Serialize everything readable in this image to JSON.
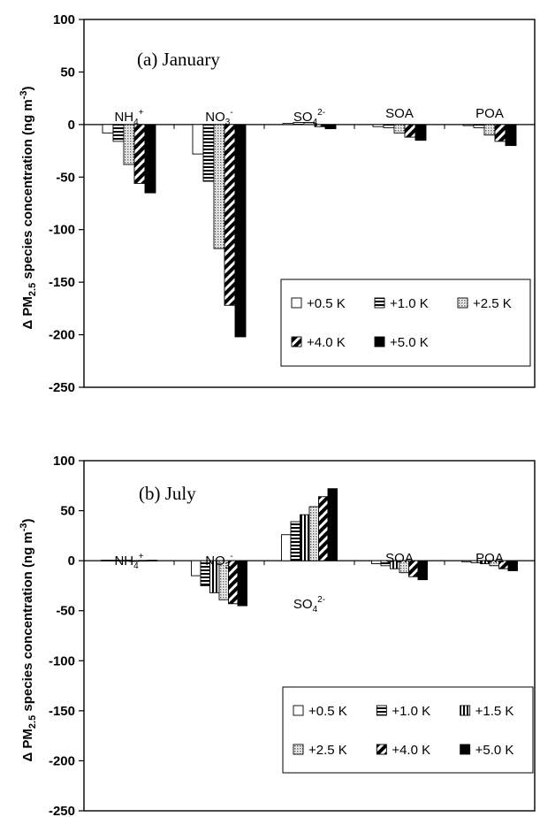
{
  "chart_data": [
    {
      "type": "bar",
      "title": "(a) January",
      "ylabel_parts": [
        "Δ PM",
        "2.5",
        " species concentration (ng m",
        "-3",
        ")"
      ],
      "ylim": [
        -250,
        100
      ],
      "yticks": [
        -250,
        -200,
        -150,
        -100,
        -50,
        0,
        50,
        100
      ],
      "categories": [
        {
          "base": "NH",
          "sub": "4",
          "sup": "+"
        },
        {
          "base": "NO",
          "sub": "3",
          "sup": "-"
        },
        {
          "base": "SO",
          "sub": "4",
          "sup": "2-"
        },
        {
          "base": "SOA",
          "sub": "",
          "sup": ""
        },
        {
          "base": "POA",
          "sub": "",
          "sup": ""
        }
      ],
      "series": [
        {
          "name": "+0.5 K",
          "pattern": "open",
          "values": [
            -8,
            -28,
            1,
            -2,
            -1
          ]
        },
        {
          "name": "+1.0 K",
          "pattern": "hstripe",
          "values": [
            -16,
            -54,
            2,
            -3,
            -3
          ]
        },
        {
          "name": "+2.5 K",
          "pattern": "dots",
          "values": [
            -38,
            -118,
            2,
            -8,
            -10
          ]
        },
        {
          "name": "+4.0 K",
          "pattern": "diag",
          "values": [
            -56,
            -172,
            -2,
            -12,
            -16
          ]
        },
        {
          "name": "+5.0 K",
          "pattern": "solid",
          "values": [
            -65,
            -202,
            -4,
            -15,
            -20
          ]
        }
      ],
      "legend_position": "bottom-right",
      "grid": false
    },
    {
      "type": "bar",
      "title": "(b) July",
      "ylabel_parts": [
        "Δ PM",
        "2.5",
        " species concentration (ng m",
        "-3",
        ")"
      ],
      "ylim": [
        -250,
        100
      ],
      "yticks": [
        -250,
        -200,
        -150,
        -100,
        -50,
        0,
        50,
        100
      ],
      "categories": [
        {
          "base": "NH",
          "sub": "4",
          "sup": "+"
        },
        {
          "base": "NO",
          "sub": "3",
          "sup": "-"
        },
        {
          "base": "SO",
          "sub": "4",
          "sup": "2-"
        },
        {
          "base": "SOA",
          "sub": "",
          "sup": ""
        },
        {
          "base": "POA",
          "sub": "",
          "sup": ""
        }
      ],
      "series": [
        {
          "name": "+0.5 K",
          "pattern": "open",
          "values": [
            0.5,
            -15,
            26,
            -3,
            -1
          ]
        },
        {
          "name": "+1.0 K",
          "pattern": "hstripe",
          "values": [
            0.5,
            -25,
            39,
            -5,
            -2
          ]
        },
        {
          "name": "+1.5 K",
          "pattern": "vstripe",
          "values": [
            0.3,
            -32,
            46,
            -8,
            -3
          ]
        },
        {
          "name": "+2.5 K",
          "pattern": "dots",
          "values": [
            -0.5,
            -39,
            54,
            -12,
            -5
          ]
        },
        {
          "name": "+4.0 K",
          "pattern": "diag",
          "values": [
            0.3,
            -43,
            64,
            -16,
            -8
          ]
        },
        {
          "name": "+5.0 K",
          "pattern": "solid",
          "values": [
            0.5,
            -45,
            72,
            -19,
            -10
          ]
        }
      ],
      "legend_position": "bottom-right",
      "grid": false
    }
  ]
}
